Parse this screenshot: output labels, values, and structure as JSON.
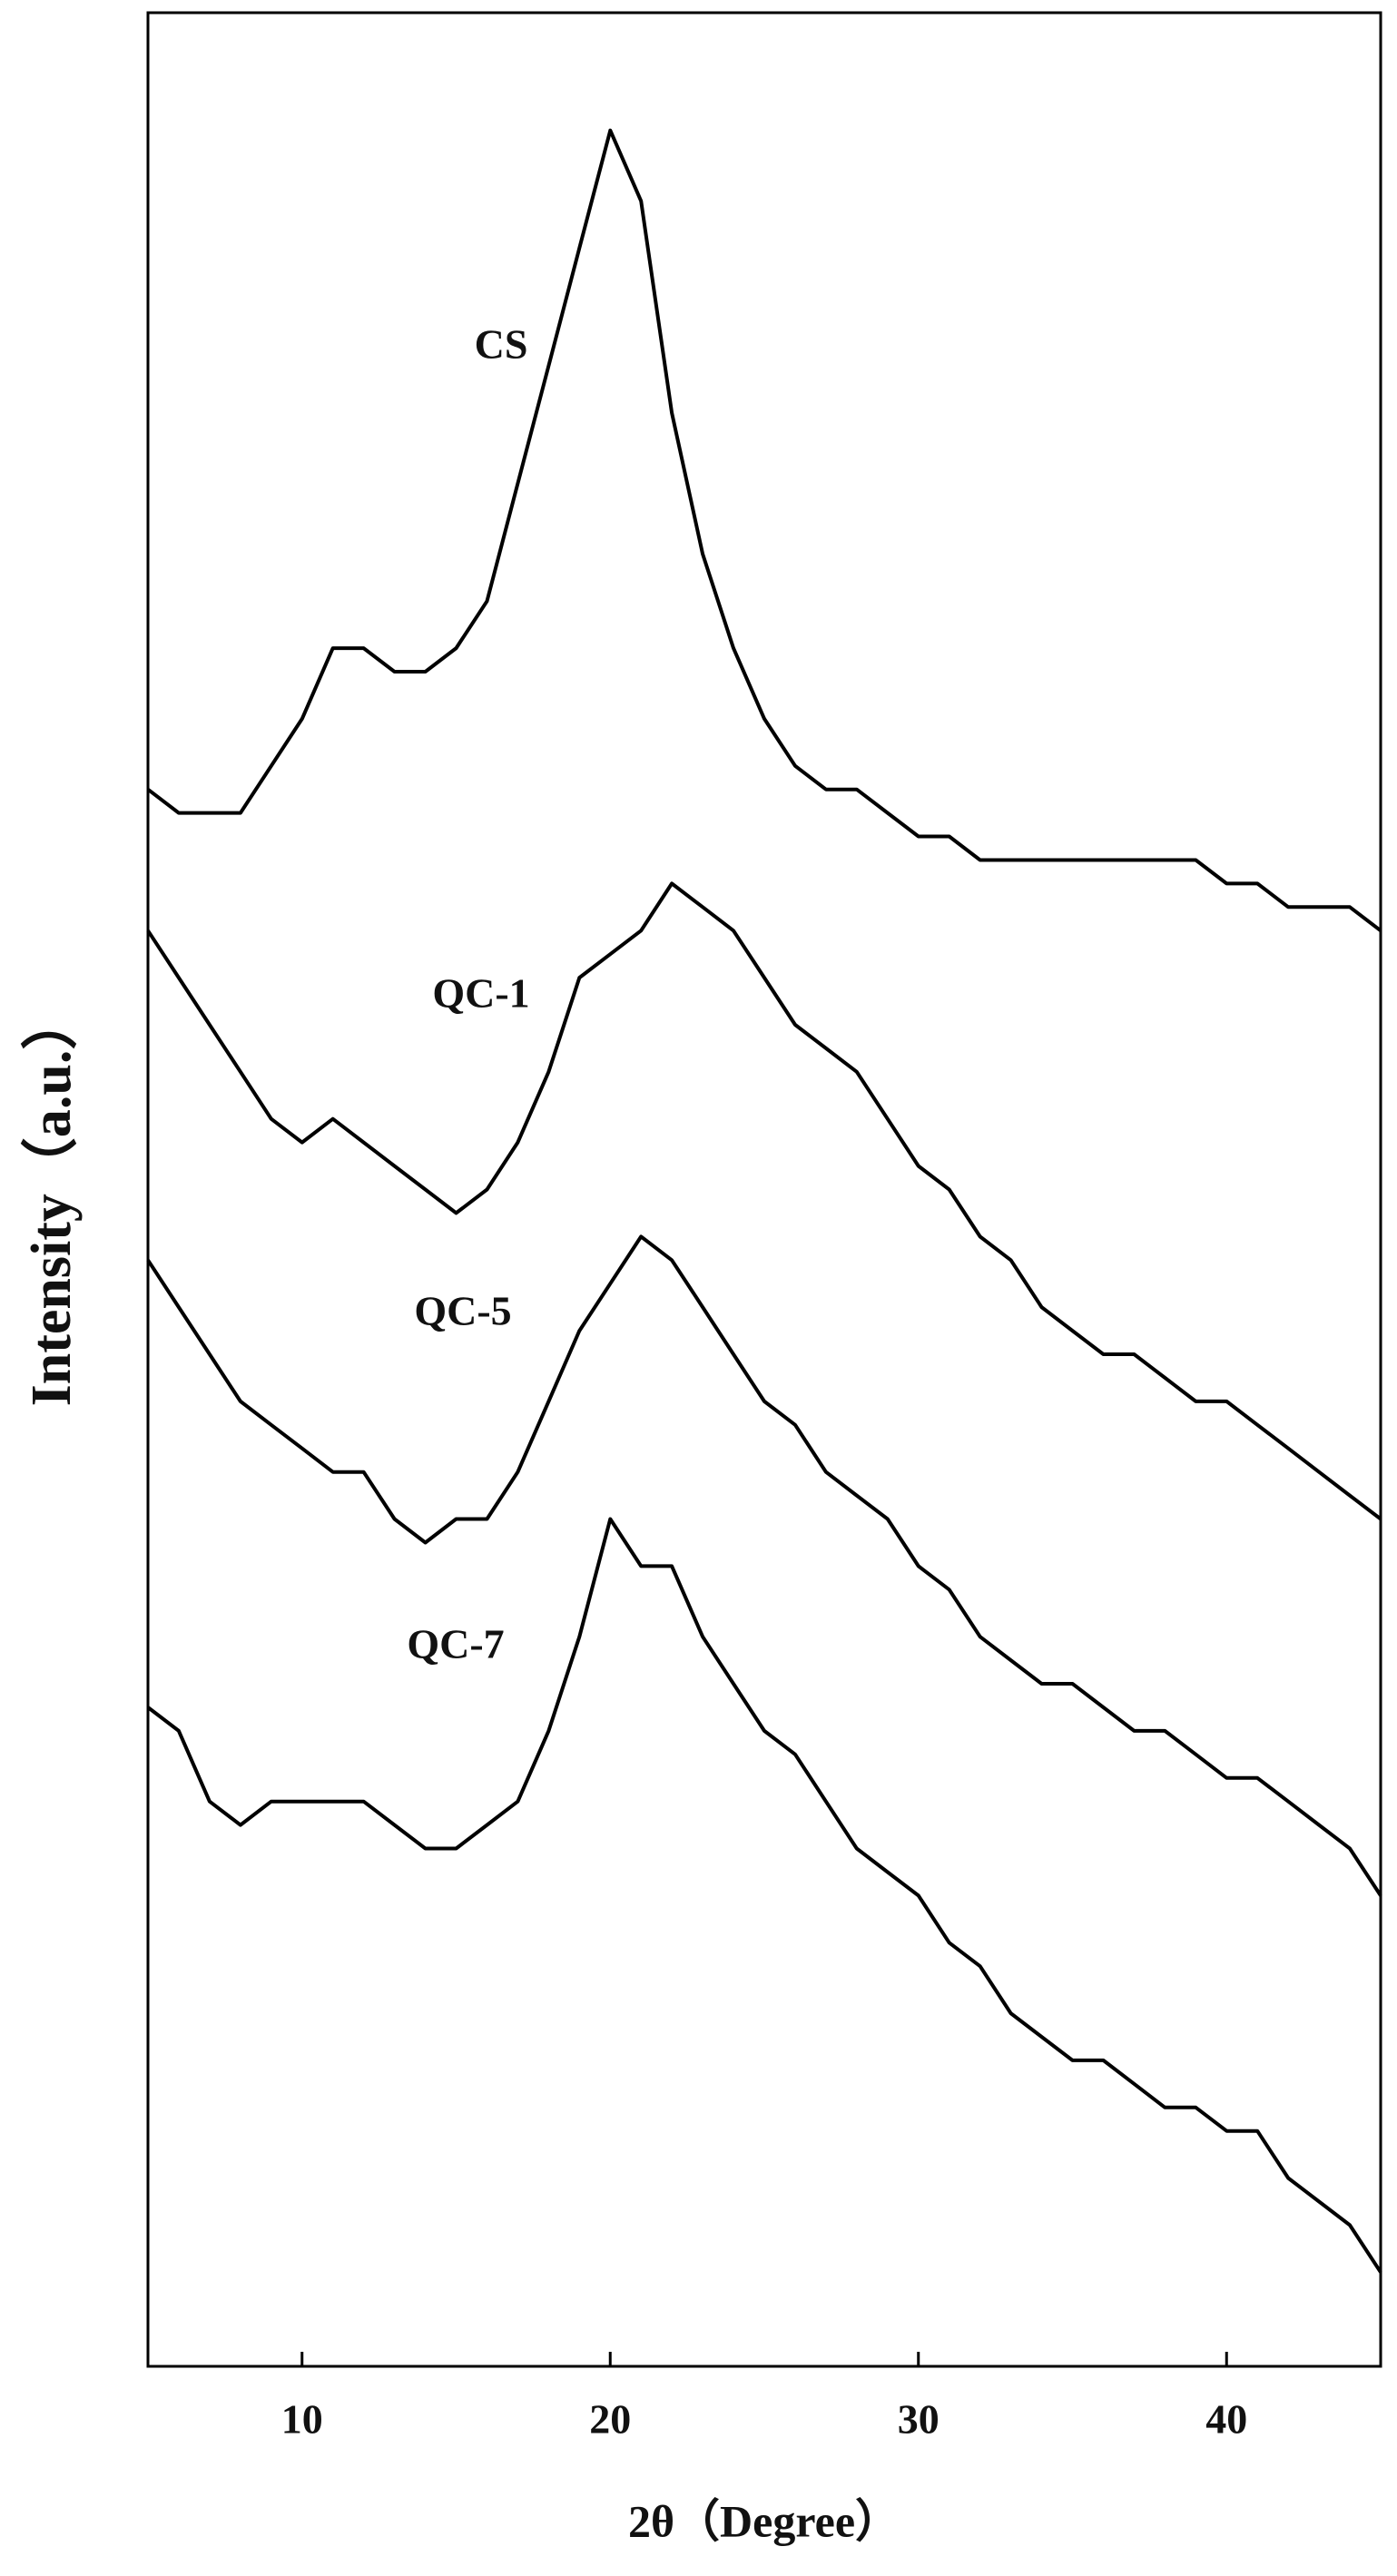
{
  "chart_data": {
    "type": "line",
    "x_label": "2θ（Degree）",
    "y_label": "Intensity（a.u.）",
    "x": [
      5,
      6,
      7,
      8,
      9,
      10,
      11,
      12,
      13,
      14,
      15,
      16,
      17,
      18,
      19,
      20,
      21,
      22,
      23,
      24,
      25,
      26,
      27,
      28,
      29,
      30,
      31,
      32,
      33,
      34,
      35,
      36,
      37,
      38,
      39,
      40,
      41,
      42,
      43,
      44,
      45
    ],
    "series": [
      {
        "name": "CS",
        "color": "#000000",
        "values": [
          67,
          66,
          66,
          66,
          68,
          70,
          73,
          73,
          72,
          72,
          73,
          75,
          80,
          85,
          90,
          95,
          92,
          83,
          77,
          73,
          70,
          68,
          67,
          67,
          66,
          65,
          65,
          64,
          64,
          64,
          64,
          64,
          64,
          64,
          64,
          63,
          63,
          62,
          62,
          62,
          61
        ]
      },
      {
        "name": "QC-1",
        "color": "#000000",
        "values": [
          61,
          59,
          57,
          55,
          53,
          52,
          53,
          52,
          51,
          50,
          49,
          50,
          52,
          55,
          59,
          60,
          61,
          63,
          62,
          61,
          59,
          57,
          56,
          55,
          53,
          51,
          50,
          48,
          47,
          45,
          44,
          43,
          43,
          42,
          41,
          41,
          40,
          39,
          38,
          37,
          36
        ]
      },
      {
        "name": "QC-5",
        "color": "#000000",
        "values": [
          47,
          45,
          43,
          41,
          40,
          39,
          38,
          38,
          36,
          35,
          36,
          36,
          38,
          41,
          44,
          46,
          48,
          47,
          45,
          43,
          41,
          40,
          38,
          37,
          36,
          34,
          33,
          31,
          30,
          29,
          29,
          28,
          27,
          27,
          26,
          25,
          25,
          24,
          23,
          22,
          20
        ]
      },
      {
        "name": "QC-7",
        "color": "#000000",
        "values": [
          28,
          27,
          24,
          23,
          24,
          24,
          24,
          24,
          23,
          22,
          22,
          23,
          24,
          27,
          31,
          36,
          34,
          34,
          31,
          29,
          27,
          26,
          24,
          22,
          21,
          20,
          18,
          17,
          15,
          14,
          13,
          13,
          12,
          11,
          11,
          10,
          10,
          8,
          7,
          6,
          4
        ]
      }
    ],
    "xlim": [
      5,
      45
    ],
    "ylim": [
      0,
      100
    ],
    "xticks": [
      10,
      20,
      30,
      40
    ]
  }
}
